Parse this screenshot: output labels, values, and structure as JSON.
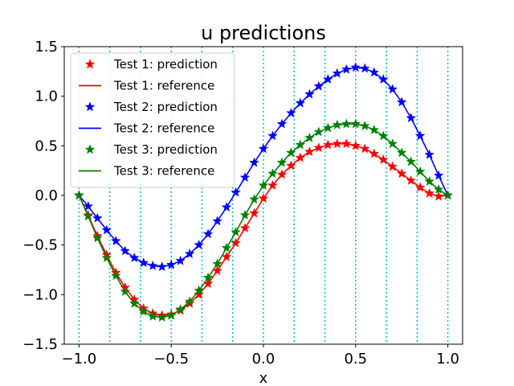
{
  "chart_data": {
    "type": "line",
    "title": "u predictions",
    "xlabel": "x",
    "ylabel": "",
    "xlim": [
      -1.08,
      1.08
    ],
    "ylim": [
      -1.5,
      1.5
    ],
    "xticks": [
      -1.0,
      -0.5,
      0.0,
      0.5,
      1.0
    ],
    "xtick_labels": [
      "−1.0",
      "−0.5",
      "0.0",
      "0.5",
      "1.0"
    ],
    "yticks": [
      -1.5,
      -1.0,
      -0.5,
      0.0,
      0.5,
      1.0,
      1.5
    ],
    "ytick_labels": [
      "−1.5",
      "−1.0",
      "−0.5",
      "0.0",
      "0.5",
      "1.0",
      "1.5"
    ],
    "vlines": [
      -1.0,
      -0.8333,
      -0.6667,
      -0.5,
      -0.3333,
      -0.1667,
      0.0,
      0.1667,
      0.3333,
      0.5,
      0.6667,
      0.8333,
      1.0
    ],
    "vline_color": "#00bfbf",
    "legend_position": "upper-left",
    "x": [
      -1.0,
      -0.95,
      -0.9,
      -0.85,
      -0.8,
      -0.75,
      -0.7,
      -0.65,
      -0.6,
      -0.55,
      -0.5,
      -0.45,
      -0.4,
      -0.35,
      -0.3,
      -0.25,
      -0.2,
      -0.15,
      -0.1,
      -0.05,
      0.0,
      0.05,
      0.1,
      0.15,
      0.2,
      0.25,
      0.3,
      0.35,
      0.4,
      0.45,
      0.5,
      0.55,
      0.6,
      0.65,
      0.7,
      0.75,
      0.8,
      0.85,
      0.9,
      0.95,
      1.0
    ],
    "series": [
      {
        "name": "Test 1: prediction",
        "kind": "markers",
        "color": "#ff0000",
        "group": 0,
        "values": [
          0.0,
          -0.2,
          -0.41,
          -0.6,
          -0.78,
          -0.93,
          -1.05,
          -1.14,
          -1.19,
          -1.21,
          -1.2,
          -1.16,
          -1.09,
          -1.0,
          -0.89,
          -0.76,
          -0.62,
          -0.48,
          -0.33,
          -0.18,
          -0.03,
          0.1,
          0.21,
          0.3,
          0.38,
          0.44,
          0.48,
          0.51,
          0.52,
          0.52,
          0.5,
          0.47,
          0.42,
          0.36,
          0.29,
          0.22,
          0.15,
          0.08,
          0.02,
          -0.01,
          0.0
        ]
      },
      {
        "name": "Test 1: reference",
        "kind": "line",
        "color": "#ff0000",
        "group": 0,
        "values": [
          0.0,
          -0.2,
          -0.41,
          -0.6,
          -0.78,
          -0.93,
          -1.05,
          -1.14,
          -1.19,
          -1.21,
          -1.2,
          -1.16,
          -1.09,
          -1.0,
          -0.89,
          -0.76,
          -0.62,
          -0.48,
          -0.33,
          -0.18,
          -0.03,
          0.1,
          0.21,
          0.3,
          0.38,
          0.44,
          0.48,
          0.51,
          0.52,
          0.52,
          0.5,
          0.47,
          0.42,
          0.36,
          0.29,
          0.22,
          0.15,
          0.08,
          0.02,
          -0.01,
          0.0
        ]
      },
      {
        "name": "Test 2: prediction",
        "kind": "markers",
        "color": "#0000ff",
        "group": 1,
        "values": [
          0.0,
          -0.11,
          -0.23,
          -0.35,
          -0.46,
          -0.56,
          -0.63,
          -0.68,
          -0.71,
          -0.72,
          -0.7,
          -0.66,
          -0.59,
          -0.5,
          -0.39,
          -0.26,
          -0.12,
          0.03,
          0.18,
          0.33,
          0.47,
          0.6,
          0.72,
          0.83,
          0.93,
          1.02,
          1.1,
          1.17,
          1.23,
          1.27,
          1.29,
          1.28,
          1.24,
          1.17,
          1.07,
          0.94,
          0.78,
          0.6,
          0.41,
          0.2,
          0.0
        ]
      },
      {
        "name": "Test 2: reference",
        "kind": "line",
        "color": "#0000ff",
        "group": 1,
        "values": [
          0.0,
          -0.11,
          -0.23,
          -0.35,
          -0.46,
          -0.56,
          -0.63,
          -0.68,
          -0.71,
          -0.72,
          -0.7,
          -0.66,
          -0.59,
          -0.5,
          -0.39,
          -0.26,
          -0.12,
          0.03,
          0.18,
          0.33,
          0.47,
          0.6,
          0.72,
          0.83,
          0.93,
          1.02,
          1.1,
          1.17,
          1.23,
          1.27,
          1.29,
          1.28,
          1.24,
          1.17,
          1.07,
          0.94,
          0.78,
          0.6,
          0.41,
          0.2,
          0.0
        ]
      },
      {
        "name": "Test 3: prediction",
        "kind": "markers",
        "color": "#008000",
        "group": 2,
        "values": [
          0.0,
          -0.21,
          -0.43,
          -0.63,
          -0.81,
          -0.97,
          -1.09,
          -1.17,
          -1.22,
          -1.23,
          -1.21,
          -1.15,
          -1.07,
          -0.96,
          -0.83,
          -0.69,
          -0.53,
          -0.37,
          -0.2,
          -0.04,
          0.1,
          0.22,
          0.33,
          0.43,
          0.51,
          0.58,
          0.64,
          0.68,
          0.71,
          0.72,
          0.72,
          0.7,
          0.66,
          0.6,
          0.52,
          0.43,
          0.34,
          0.24,
          0.14,
          0.06,
          0.0
        ]
      },
      {
        "name": "Test 3: reference",
        "kind": "line",
        "color": "#008000",
        "group": 2,
        "values": [
          0.0,
          -0.21,
          -0.43,
          -0.63,
          -0.81,
          -0.97,
          -1.09,
          -1.17,
          -1.22,
          -1.23,
          -1.21,
          -1.15,
          -1.07,
          -0.96,
          -0.83,
          -0.69,
          -0.53,
          -0.37,
          -0.2,
          -0.04,
          0.1,
          0.22,
          0.33,
          0.43,
          0.51,
          0.58,
          0.64,
          0.68,
          0.71,
          0.72,
          0.72,
          0.7,
          0.66,
          0.6,
          0.52,
          0.43,
          0.34,
          0.24,
          0.14,
          0.06,
          0.0
        ]
      }
    ]
  }
}
